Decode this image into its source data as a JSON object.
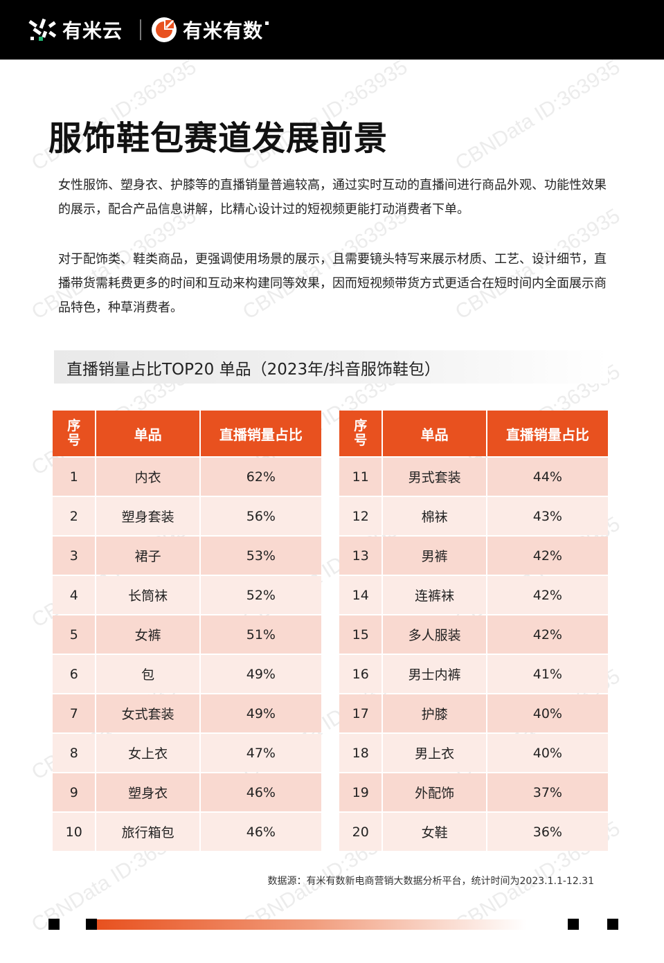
{
  "header": {
    "logo1_text": "有米云",
    "logo2_text": "有米有数"
  },
  "watermark": "CBNData ID:363935",
  "title": "服饰鞋包赛道发展前景",
  "paragraphs": [
    "女性服饰、塑身衣、护膝等的直播销量普遍较高，通过实时互动的直播间进行商品外观、功能性效果的展示，配合产品信息讲解，比精心设计过的短视频更能打动消费者下单。",
    "对于配饰类、鞋类商品，更强调使用场景的展示，且需要镜头特写来展示材质、工艺、设计细节，直播带货需耗费更多的时间和互动来构建同等效果，因而短视频带货方式更适合在短时间内全面展示商品特色，种草消费者。"
  ],
  "table_title": "直播销量占比TOP20 单品（2023年/抖音服饰鞋包）",
  "table_headers": {
    "seq_line1": "序",
    "seq_line2": "号",
    "item": "单品",
    "share": "直播销量占比"
  },
  "rows_left": [
    {
      "rank": "1",
      "item": "内衣",
      "share": "62%"
    },
    {
      "rank": "2",
      "item": "塑身套装",
      "share": "56%"
    },
    {
      "rank": "3",
      "item": "裙子",
      "share": "53%"
    },
    {
      "rank": "4",
      "item": "长筒袜",
      "share": "52%"
    },
    {
      "rank": "5",
      "item": "女裤",
      "share": "51%"
    },
    {
      "rank": "6",
      "item": "包",
      "share": "49%"
    },
    {
      "rank": "7",
      "item": "女式套装",
      "share": "49%"
    },
    {
      "rank": "8",
      "item": "女上衣",
      "share": "47%"
    },
    {
      "rank": "9",
      "item": "塑身衣",
      "share": "46%"
    },
    {
      "rank": "10",
      "item": "旅行箱包",
      "share": "46%"
    }
  ],
  "rows_right": [
    {
      "rank": "11",
      "item": "男式套装",
      "share": "44%"
    },
    {
      "rank": "12",
      "item": "棉袜",
      "share": "43%"
    },
    {
      "rank": "13",
      "item": "男裤",
      "share": "42%"
    },
    {
      "rank": "14",
      "item": "连裤袜",
      "share": "42%"
    },
    {
      "rank": "15",
      "item": "多人服装",
      "share": "42%"
    },
    {
      "rank": "16",
      "item": "男士内裤",
      "share": "41%"
    },
    {
      "rank": "17",
      "item": "护膝",
      "share": "40%"
    },
    {
      "rank": "18",
      "item": "男上衣",
      "share": "40%"
    },
    {
      "rank": "19",
      "item": "外配饰",
      "share": "37%"
    },
    {
      "rank": "20",
      "item": "女鞋",
      "share": "36%"
    }
  ],
  "source": "数据源：有米有数新电商营销大数据分析平台，统计时间为2023.1.1-12.31",
  "colors": {
    "accent": "#e8511f",
    "row_dark": "#f9d9d0",
    "row_light": "#fcebe6",
    "header_bg": "#000000"
  }
}
